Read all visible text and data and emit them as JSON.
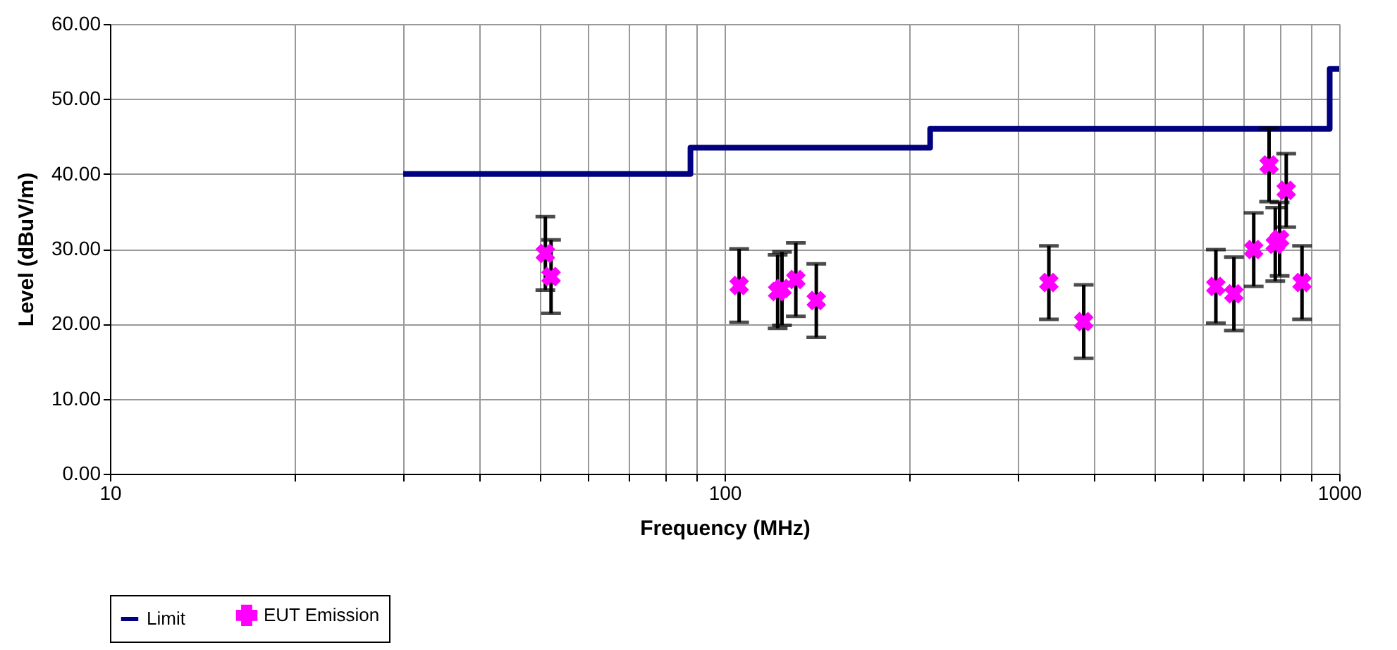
{
  "chart_data": {
    "type": "scatter",
    "xlabel": "Frequency (MHz)",
    "ylabel": "Level (dBuV/m)",
    "xlim": [
      10,
      1000
    ],
    "ylim": [
      0,
      60
    ],
    "xticks": [
      10,
      {
        "value": 20,
        "label": null
      },
      {
        "value": 30,
        "label": null
      },
      {
        "value": 40,
        "label": null
      },
      {
        "value": 50,
        "label": null
      },
      {
        "value": 60,
        "label": null
      },
      {
        "value": 70,
        "label": null
      },
      {
        "value": 80,
        "label": null
      },
      {
        "value": 90,
        "label": null
      },
      100,
      {
        "value": 200,
        "label": null
      },
      {
        "value": 300,
        "label": null
      },
      {
        "value": 400,
        "label": null
      },
      {
        "value": 500,
        "label": null
      },
      {
        "value": 600,
        "label": null
      },
      {
        "value": 700,
        "label": null
      },
      {
        "value": 800,
        "label": null
      },
      {
        "value": 900,
        "label": null
      },
      1000
    ],
    "yticks": [
      {
        "value": 0,
        "label": "0.00"
      },
      {
        "value": 10,
        "label": "10.00"
      },
      {
        "value": 20,
        "label": "20.00"
      },
      {
        "value": 30,
        "label": "30.00"
      },
      {
        "value": 40,
        "label": "40.00"
      },
      {
        "value": 50,
        "label": "50.00"
      },
      {
        "value": 60,
        "label": "60.00"
      }
    ],
    "log": "x",
    "grid": true,
    "legend": "bottom",
    "series": [
      {
        "name": "Limit",
        "type": "step",
        "color": "#000080",
        "x": [
          30,
          88,
          216,
          965,
          1000
        ],
        "values": [
          40,
          43.5,
          46,
          54,
          54
        ]
      },
      {
        "name": "EUT Emission",
        "marker": "cross",
        "color": "#ff00ff",
        "x": [
          51.1,
          52.2,
          105.6,
          122,
          124,
          130.6,
          141,
          337,
          384,
          630,
          674,
          726,
          769,
          787,
          800,
          820,
          870
        ],
        "values": [
          29.4,
          26.3,
          25.1,
          24.3,
          24.7,
          25.9,
          23.1,
          25.5,
          20.3,
          25.0,
          24.0,
          29.9,
          41.2,
          30.6,
          31.3,
          37.8,
          25.5
        ],
        "errors": [
          4.9,
          4.9,
          4.9,
          4.9,
          4.9,
          4.9,
          4.9,
          4.9,
          4.9,
          4.9,
          4.9,
          4.9,
          4.9,
          4.9,
          4.9,
          4.9,
          4.9
        ]
      }
    ]
  }
}
